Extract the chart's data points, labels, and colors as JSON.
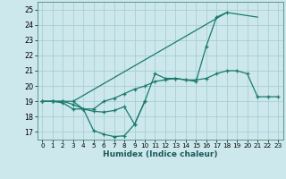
{
  "title": "",
  "xlabel": "Humidex (Indice chaleur)",
  "background_color": "#cce8ec",
  "grid_color": "#aacdd4",
  "line_color": "#1a7a6e",
  "xlim": [
    -0.5,
    23.5
  ],
  "ylim": [
    16.5,
    25.5
  ],
  "xticks": [
    0,
    1,
    2,
    3,
    4,
    5,
    6,
    7,
    8,
    9,
    10,
    11,
    12,
    13,
    14,
    15,
    16,
    17,
    18,
    19,
    20,
    21,
    22,
    23
  ],
  "yticks": [
    17,
    18,
    19,
    20,
    21,
    22,
    23,
    24,
    25
  ],
  "line1_x": [
    0,
    1,
    2,
    3,
    4,
    5,
    6,
    7,
    8,
    9,
    10,
    11,
    12,
    13,
    14,
    15,
    16,
    17,
    18
  ],
  "line1_y": [
    19,
    19,
    19,
    18.8,
    18.5,
    17.1,
    16.85,
    16.7,
    16.75,
    17.5,
    19.0,
    20.8,
    20.5,
    20.5,
    20.4,
    20.3,
    22.6,
    24.5,
    24.8
  ],
  "line2_x": [
    0,
    1,
    2,
    3,
    4,
    5,
    6,
    7,
    8,
    9,
    10
  ],
  "line2_y": [
    19,
    19,
    18.9,
    18.5,
    18.5,
    18.35,
    18.3,
    18.4,
    18.65,
    17.5,
    19.0
  ],
  "line3_x": [
    0,
    1,
    2,
    3,
    4,
    5,
    6,
    7,
    8,
    9,
    10,
    11,
    12,
    13,
    14,
    15,
    16,
    17,
    18,
    19,
    20,
    21,
    22,
    23
  ],
  "line3_y": [
    19,
    19,
    19,
    19,
    18.5,
    18.5,
    19.0,
    19.2,
    19.5,
    19.8,
    20.0,
    20.3,
    20.4,
    20.5,
    20.4,
    20.4,
    20.5,
    20.8,
    21.0,
    21.0,
    20.8,
    19.3,
    19.3,
    19.3
  ],
  "line4_x": [
    3,
    18,
    21
  ],
  "line4_y": [
    19,
    24.8,
    24.5
  ]
}
